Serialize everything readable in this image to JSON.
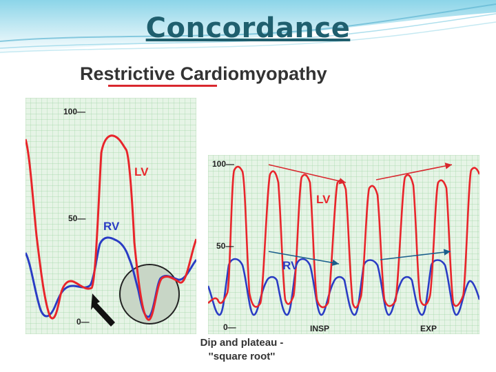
{
  "slide": {
    "title": "Concordance"
  },
  "figure": {
    "title": "Restrictive Cardiomyopathy",
    "caption_line1": "Dip and plateau -",
    "caption_line2": "''square root''",
    "colors": {
      "lv": "#e8252b",
      "rv": "#2a3cc4",
      "grid": "#9ed6a4",
      "grid_bg": "#e6f4e6",
      "title_underline": "#d9272e",
      "arrow_lv": "#d9272e",
      "arrow_rv": "#1a5f8c"
    }
  },
  "left_panel": {
    "tick_100": "100—",
    "tick_50": "50—",
    "tick_0": "0—",
    "lv_label": "LV",
    "rv_label": "RV"
  },
  "right_panel": {
    "tick_100": "100—",
    "tick_50": "50—",
    "tick_0": "0—",
    "lv_label": "LV",
    "rv_label": "RV",
    "insp_label": "INSP",
    "exp_label": "EXP"
  }
}
